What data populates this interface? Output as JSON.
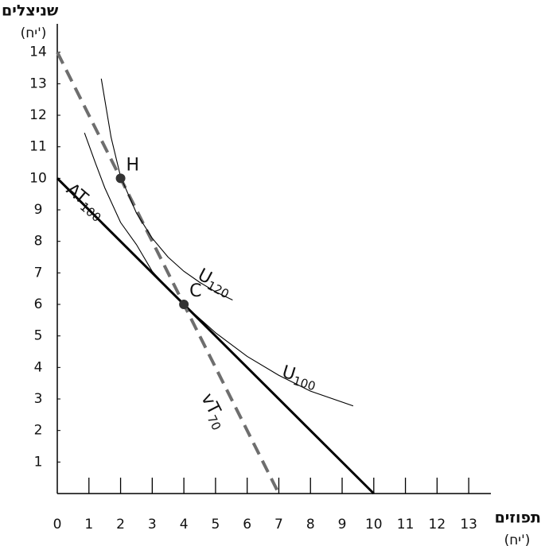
{
  "chart_data": {
    "type": "line",
    "y_label": "שניצלים",
    "y_unit": "(יח')",
    "x_label": "תפוזים",
    "x_unit": "(יח')",
    "xlim": [
      0,
      13.7
    ],
    "ylim": [
      0,
      14.9
    ],
    "xticks": [
      0,
      1,
      2,
      3,
      4,
      5,
      6,
      7,
      8,
      9,
      10,
      11,
      12,
      13
    ],
    "yticks": [
      1,
      2,
      3,
      4,
      5,
      6,
      7,
      8,
      9,
      10,
      11,
      12,
      13,
      14
    ],
    "series": [
      {
        "label": "AT",
        "label_sub": "100",
        "color": "#000000",
        "style": "solid",
        "x": [
          0,
          10
        ],
        "values": [
          10,
          0
        ]
      },
      {
        "label": "vT",
        "label_sub": "70",
        "color": "#6e6e6e",
        "style": "dashed",
        "x": [
          0,
          7
        ],
        "values": [
          14,
          0
        ]
      },
      {
        "label": "U",
        "label_sub": "120",
        "color": "#000000",
        "style": "thin",
        "x": [
          1.39,
          1.7,
          2,
          2.5,
          3,
          3.5,
          4,
          4.5,
          5,
          5.54
        ],
        "values": [
          13.16,
          11.3,
          10.05,
          8.9,
          8.1,
          7.5,
          7.05,
          6.7,
          6.4,
          6.14
        ]
      },
      {
        "label": "U",
        "label_sub": "100",
        "color": "#000000",
        "style": "thin",
        "x": [
          0.86,
          1.2,
          1.5,
          2,
          2.5,
          3,
          3.5,
          4,
          5,
          6,
          7,
          8,
          9.35
        ],
        "values": [
          11.44,
          10.5,
          9.7,
          8.6,
          7.9,
          7.05,
          6.5,
          6,
          5.1,
          4.35,
          3.75,
          3.25,
          2.78
        ]
      }
    ],
    "points": [
      {
        "label": "H",
        "x": 2,
        "y": 10
      },
      {
        "label": "C",
        "x": 4,
        "y": 6
      }
    ]
  }
}
